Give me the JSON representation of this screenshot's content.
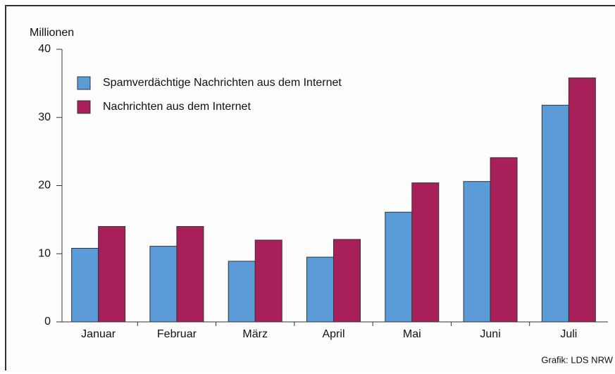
{
  "chart_data": {
    "type": "bar",
    "y_axis_label": "Millionen",
    "source": "Grafik: LDS NRW",
    "categories": [
      "Januar",
      "Februar",
      "März",
      "April",
      "Mai",
      "Juni",
      "Juli"
    ],
    "series": [
      {
        "name": "Spamverdächtige Nachrichten aus dem Internet",
        "color": "#5b9bd8",
        "values": [
          10.8,
          11.1,
          8.9,
          9.5,
          16.1,
          20.6,
          31.8
        ]
      },
      {
        "name": "Nachrichten aus dem Internet",
        "color": "#a8205a",
        "values": [
          14.0,
          14.0,
          12.0,
          12.1,
          20.4,
          24.1,
          35.8
        ]
      }
    ],
    "ylim": [
      0,
      40
    ],
    "yticks": [
      0,
      10,
      20,
      30,
      40
    ],
    "legend": "upper left",
    "grid": false
  }
}
